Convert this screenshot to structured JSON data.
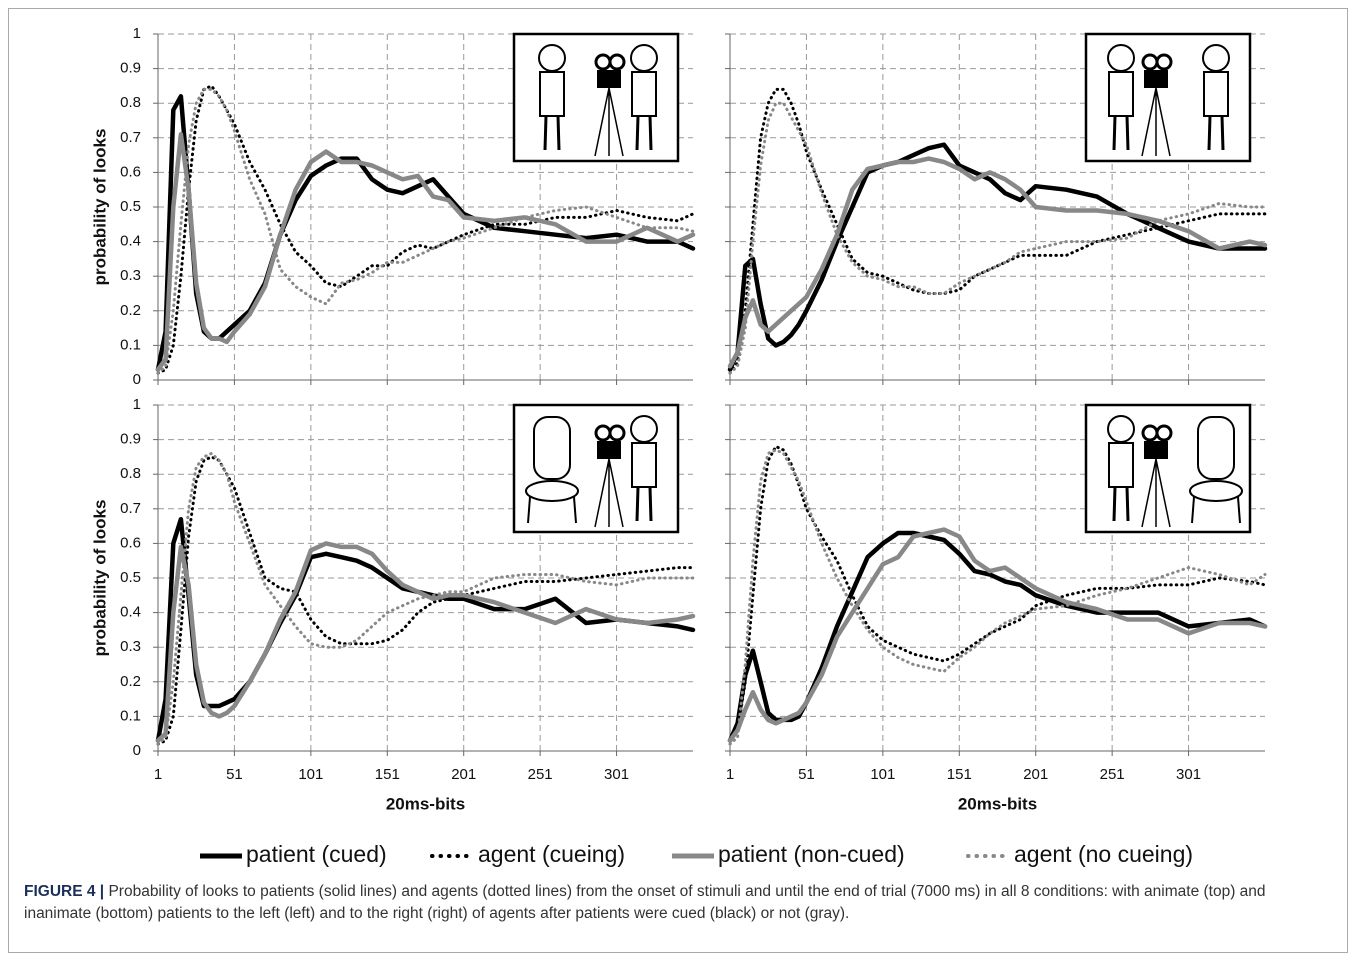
{
  "chart_data": [
    {
      "type": "line",
      "ylabel": "probability of looks",
      "x": [
        1,
        6,
        11,
        16,
        21,
        26,
        31,
        36,
        41,
        46,
        51,
        61,
        71,
        81,
        91,
        101,
        111,
        121,
        131,
        141,
        151,
        161,
        171,
        181,
        191,
        201,
        221,
        241,
        261,
        281,
        301,
        321,
        341,
        351
      ],
      "xlim": [
        1,
        351
      ],
      "xticks": [
        1,
        51,
        101,
        151,
        201,
        251,
        301
      ],
      "ylim": [
        0,
        1
      ],
      "yticks": [
        0,
        0.1,
        0.2,
        0.3,
        0.4,
        0.5,
        0.6,
        0.7,
        0.8,
        0.9,
        1
      ],
      "grid": true,
      "series": [
        {
          "name": "patient (cued)",
          "color": "#000000",
          "style": "solid",
          "values": [
            0.03,
            0.14,
            0.78,
            0.82,
            0.55,
            0.25,
            0.14,
            0.12,
            0.12,
            0.14,
            0.16,
            0.2,
            0.28,
            0.42,
            0.52,
            0.59,
            0.62,
            0.64,
            0.64,
            0.58,
            0.55,
            0.54,
            0.56,
            0.58,
            0.53,
            0.48,
            0.44,
            0.43,
            0.42,
            0.41,
            0.42,
            0.4,
            0.4,
            0.38
          ]
        },
        {
          "name": "agent (cueing)",
          "color": "#000000",
          "style": "dotted",
          "values": [
            0.02,
            0.03,
            0.1,
            0.3,
            0.55,
            0.75,
            0.84,
            0.85,
            0.82,
            0.78,
            0.74,
            0.63,
            0.55,
            0.45,
            0.37,
            0.33,
            0.28,
            0.27,
            0.3,
            0.33,
            0.33,
            0.37,
            0.39,
            0.38,
            0.4,
            0.42,
            0.45,
            0.45,
            0.47,
            0.47,
            0.49,
            0.47,
            0.46,
            0.48
          ]
        },
        {
          "name": "patient (non-cued)",
          "color": "#888888",
          "style": "solid",
          "values": [
            0.03,
            0.06,
            0.5,
            0.71,
            0.55,
            0.28,
            0.15,
            0.12,
            0.12,
            0.11,
            0.14,
            0.19,
            0.27,
            0.42,
            0.55,
            0.63,
            0.66,
            0.63,
            0.63,
            0.62,
            0.6,
            0.58,
            0.59,
            0.53,
            0.52,
            0.47,
            0.46,
            0.47,
            0.45,
            0.4,
            0.4,
            0.44,
            0.4,
            0.42
          ]
        },
        {
          "name": "agent (no cueing)",
          "color": "#888888",
          "style": "dotted",
          "values": [
            0.02,
            0.04,
            0.2,
            0.45,
            0.68,
            0.8,
            0.84,
            0.84,
            0.82,
            0.78,
            0.72,
            0.58,
            0.48,
            0.32,
            0.27,
            0.24,
            0.22,
            0.28,
            0.29,
            0.31,
            0.34,
            0.34,
            0.36,
            0.38,
            0.4,
            0.41,
            0.44,
            0.47,
            0.49,
            0.5,
            0.47,
            0.44,
            0.44,
            0.43
          ]
        }
      ]
    },
    {
      "type": "line",
      "x": [
        1,
        6,
        11,
        16,
        21,
        26,
        31,
        36,
        41,
        46,
        51,
        61,
        71,
        81,
        91,
        101,
        111,
        121,
        131,
        141,
        151,
        161,
        171,
        181,
        191,
        201,
        221,
        241,
        261,
        281,
        301,
        321,
        341,
        351
      ],
      "xlim": [
        1,
        351
      ],
      "xticks": [
        1,
        51,
        101,
        151,
        201,
        251,
        301
      ],
      "ylim": [
        0,
        1
      ],
      "yticks": [
        0,
        0.1,
        0.2,
        0.3,
        0.4,
        0.5,
        0.6,
        0.7,
        0.8,
        0.9,
        1
      ],
      "grid": true,
      "series": [
        {
          "name": "patient (cued)",
          "color": "#000000",
          "style": "solid",
          "values": [
            0.03,
            0.08,
            0.33,
            0.35,
            0.22,
            0.12,
            0.1,
            0.11,
            0.13,
            0.16,
            0.2,
            0.29,
            0.4,
            0.5,
            0.6,
            0.62,
            0.63,
            0.65,
            0.67,
            0.68,
            0.62,
            0.6,
            0.58,
            0.54,
            0.52,
            0.56,
            0.55,
            0.53,
            0.48,
            0.44,
            0.4,
            0.38,
            0.38,
            0.38
          ]
        },
        {
          "name": "agent (cueing)",
          "color": "#000000",
          "style": "dotted",
          "values": [
            0.02,
            0.05,
            0.2,
            0.45,
            0.7,
            0.8,
            0.84,
            0.84,
            0.8,
            0.74,
            0.66,
            0.55,
            0.45,
            0.35,
            0.31,
            0.3,
            0.28,
            0.26,
            0.25,
            0.25,
            0.26,
            0.3,
            0.32,
            0.34,
            0.36,
            0.36,
            0.36,
            0.4,
            0.42,
            0.44,
            0.46,
            0.48,
            0.48,
            0.48
          ]
        },
        {
          "name": "patient (non-cued)",
          "color": "#888888",
          "style": "solid",
          "values": [
            0.04,
            0.08,
            0.18,
            0.23,
            0.16,
            0.14,
            0.16,
            0.18,
            0.2,
            0.22,
            0.24,
            0.32,
            0.42,
            0.55,
            0.61,
            0.62,
            0.63,
            0.63,
            0.64,
            0.63,
            0.61,
            0.58,
            0.6,
            0.58,
            0.55,
            0.5,
            0.49,
            0.49,
            0.48,
            0.46,
            0.43,
            0.38,
            0.4,
            0.39
          ]
        },
        {
          "name": "agent (no cueing)",
          "color": "#888888",
          "style": "dotted",
          "values": [
            0.02,
            0.04,
            0.15,
            0.4,
            0.62,
            0.75,
            0.8,
            0.8,
            0.76,
            0.72,
            0.68,
            0.54,
            0.42,
            0.34,
            0.3,
            0.29,
            0.27,
            0.27,
            0.25,
            0.25,
            0.28,
            0.3,
            0.32,
            0.34,
            0.37,
            0.38,
            0.4,
            0.4,
            0.41,
            0.46,
            0.48,
            0.51,
            0.5,
            0.5
          ]
        }
      ]
    },
    {
      "type": "line",
      "ylabel": "probability of looks",
      "xlabel": "20ms-bits",
      "x": [
        1,
        6,
        11,
        16,
        21,
        26,
        31,
        36,
        41,
        46,
        51,
        61,
        71,
        81,
        91,
        101,
        111,
        121,
        131,
        141,
        151,
        161,
        171,
        181,
        191,
        201,
        221,
        241,
        261,
        281,
        301,
        321,
        341,
        351
      ],
      "xlim": [
        1,
        351
      ],
      "xticks": [
        1,
        51,
        101,
        151,
        201,
        251,
        301
      ],
      "ylim": [
        0,
        1
      ],
      "yticks": [
        0,
        0.1,
        0.2,
        0.3,
        0.4,
        0.5,
        0.6,
        0.7,
        0.8,
        0.9,
        1
      ],
      "grid": true,
      "series": [
        {
          "name": "patient (cued)",
          "color": "#000000",
          "style": "solid",
          "values": [
            0.03,
            0.15,
            0.6,
            0.67,
            0.45,
            0.22,
            0.13,
            0.13,
            0.13,
            0.14,
            0.15,
            0.2,
            0.28,
            0.37,
            0.45,
            0.56,
            0.57,
            0.56,
            0.55,
            0.53,
            0.5,
            0.47,
            0.46,
            0.45,
            0.44,
            0.44,
            0.41,
            0.41,
            0.44,
            0.37,
            0.38,
            0.37,
            0.36,
            0.35
          ]
        },
        {
          "name": "agent (cueing)",
          "color": "#000000",
          "style": "dotted",
          "values": [
            0.02,
            0.03,
            0.1,
            0.35,
            0.62,
            0.78,
            0.84,
            0.85,
            0.84,
            0.8,
            0.76,
            0.63,
            0.5,
            0.47,
            0.46,
            0.38,
            0.33,
            0.31,
            0.31,
            0.31,
            0.32,
            0.35,
            0.4,
            0.43,
            0.44,
            0.45,
            0.47,
            0.49,
            0.49,
            0.5,
            0.51,
            0.52,
            0.53,
            0.53
          ]
        },
        {
          "name": "patient (non-cued)",
          "color": "#888888",
          "style": "solid",
          "values": [
            0.03,
            0.05,
            0.4,
            0.59,
            0.48,
            0.25,
            0.14,
            0.11,
            0.1,
            0.11,
            0.13,
            0.2,
            0.28,
            0.38,
            0.46,
            0.58,
            0.6,
            0.59,
            0.59,
            0.57,
            0.52,
            0.48,
            0.46,
            0.44,
            0.45,
            0.45,
            0.43,
            0.4,
            0.37,
            0.41,
            0.38,
            0.37,
            0.38,
            0.39
          ]
        },
        {
          "name": "agent (no cueing)",
          "color": "#888888",
          "style": "dotted",
          "values": [
            0.02,
            0.04,
            0.2,
            0.45,
            0.7,
            0.82,
            0.85,
            0.86,
            0.84,
            0.8,
            0.72,
            0.6,
            0.48,
            0.42,
            0.36,
            0.31,
            0.3,
            0.3,
            0.32,
            0.36,
            0.4,
            0.42,
            0.44,
            0.45,
            0.46,
            0.46,
            0.5,
            0.51,
            0.51,
            0.49,
            0.48,
            0.5,
            0.5,
            0.5
          ]
        }
      ]
    },
    {
      "type": "line",
      "xlabel": "20ms-bits",
      "x": [
        1,
        6,
        11,
        16,
        21,
        26,
        31,
        36,
        41,
        46,
        51,
        61,
        71,
        81,
        91,
        101,
        111,
        121,
        131,
        141,
        151,
        161,
        171,
        181,
        191,
        201,
        221,
        241,
        261,
        281,
        301,
        321,
        341,
        351
      ],
      "xlim": [
        1,
        351
      ],
      "xticks": [
        1,
        51,
        101,
        151,
        201,
        251,
        301
      ],
      "ylim": [
        0,
        1
      ],
      "yticks": [
        0,
        0.1,
        0.2,
        0.3,
        0.4,
        0.5,
        0.6,
        0.7,
        0.8,
        0.9,
        1
      ],
      "grid": true,
      "series": [
        {
          "name": "patient (cued)",
          "color": "#000000",
          "style": "solid",
          "values": [
            0.03,
            0.08,
            0.22,
            0.29,
            0.2,
            0.11,
            0.09,
            0.09,
            0.09,
            0.1,
            0.14,
            0.24,
            0.36,
            0.46,
            0.56,
            0.6,
            0.63,
            0.63,
            0.62,
            0.61,
            0.57,
            0.52,
            0.51,
            0.49,
            0.48,
            0.45,
            0.42,
            0.4,
            0.4,
            0.4,
            0.36,
            0.37,
            0.38,
            0.36
          ]
        },
        {
          "name": "agent (cueing)",
          "color": "#000000",
          "style": "dotted",
          "values": [
            0.03,
            0.06,
            0.2,
            0.45,
            0.7,
            0.84,
            0.88,
            0.87,
            0.83,
            0.77,
            0.7,
            0.62,
            0.55,
            0.45,
            0.36,
            0.32,
            0.3,
            0.28,
            0.27,
            0.26,
            0.28,
            0.31,
            0.34,
            0.36,
            0.38,
            0.42,
            0.45,
            0.47,
            0.47,
            0.48,
            0.48,
            0.5,
            0.49,
            0.48
          ]
        },
        {
          "name": "patient (non-cued)",
          "color": "#888888",
          "style": "solid",
          "values": [
            0.03,
            0.06,
            0.12,
            0.17,
            0.12,
            0.09,
            0.08,
            0.09,
            0.1,
            0.11,
            0.14,
            0.22,
            0.33,
            0.4,
            0.47,
            0.54,
            0.56,
            0.62,
            0.63,
            0.64,
            0.62,
            0.55,
            0.52,
            0.53,
            0.5,
            0.47,
            0.43,
            0.41,
            0.38,
            0.38,
            0.34,
            0.37,
            0.37,
            0.36
          ]
        },
        {
          "name": "agent (no cueing)",
          "color": "#888888",
          "style": "dotted",
          "values": [
            0.02,
            0.04,
            0.25,
            0.55,
            0.78,
            0.86,
            0.87,
            0.86,
            0.82,
            0.78,
            0.72,
            0.6,
            0.5,
            0.42,
            0.35,
            0.3,
            0.27,
            0.25,
            0.24,
            0.23,
            0.27,
            0.3,
            0.34,
            0.37,
            0.39,
            0.41,
            0.42,
            0.45,
            0.47,
            0.5,
            0.53,
            0.51,
            0.48,
            0.51
          ]
        }
      ]
    }
  ],
  "caption": {
    "label": "FIGURE 4 |",
    "text": "Probability of looks to patients (solid lines) and agents (dotted lines) from the onset of stimuli and until the end of trial (7000 ms) in all 8 conditions: with animate (top) and inanimate (bottom) patients to the left (left) and to the right (right) of agents after patients were cued (black) or not (gray)."
  }
}
